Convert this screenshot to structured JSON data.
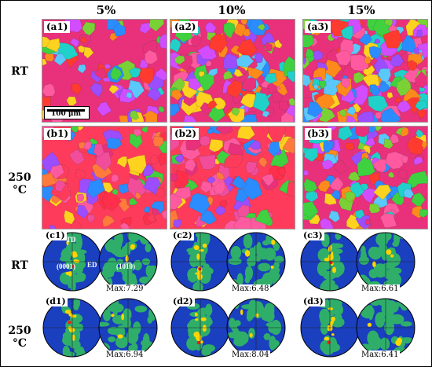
{
  "columns": [
    "5%",
    "10%",
    "15%"
  ],
  "rows": {
    "a": "RT",
    "b": "250 °C",
    "c": "RT",
    "d": "250 °C"
  },
  "map_labels": {
    "a": [
      "(a1)",
      "(a2)",
      "(a3)"
    ],
    "b": [
      "(b1)",
      "(b2)",
      "(b3)"
    ]
  },
  "pf_labels": {
    "c": [
      "(c1)",
      "(c2)",
      "(c3)"
    ],
    "d": [
      "(d1)",
      "(d2)",
      "(d3)"
    ]
  },
  "pf_max": {
    "c": [
      "Max:7.29",
      "Max:6.48",
      "Max:6.61"
    ],
    "d": [
      "Max:6.94",
      "Max:8.04",
      "Max:6.41"
    ]
  },
  "scale_bar": "100 μm",
  "pf_axis_labels": {
    "td": "TD",
    "ed": "ED",
    "plane1": "(0001)",
    "plane2": "(10̅1̅0)"
  },
  "colors": {
    "pf_background": "#1a3fbf",
    "pf_mid": "#2fae6a",
    "pf_high": "#ffd400",
    "pf_peak": "#e8201a"
  }
}
